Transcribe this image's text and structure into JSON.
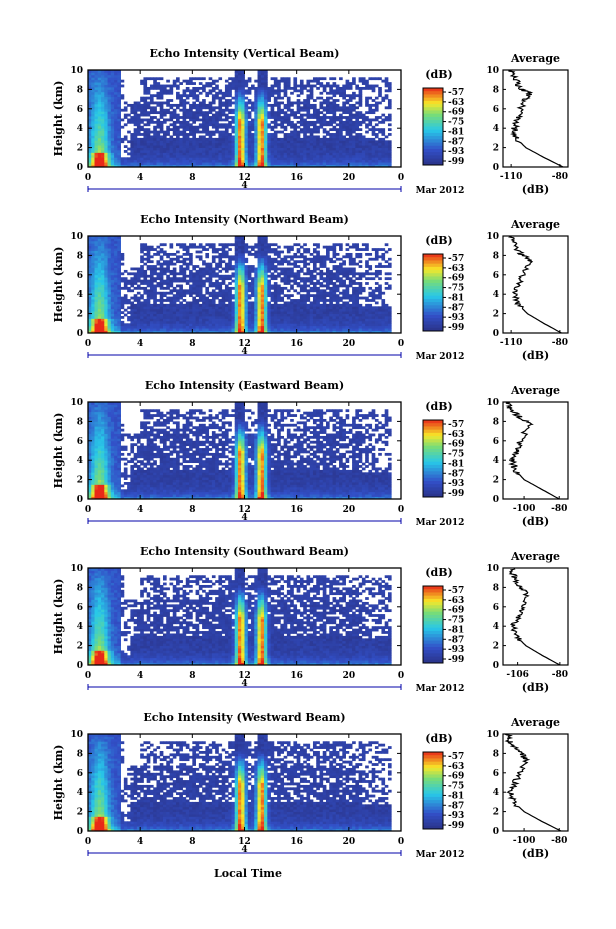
{
  "figure": {
    "date_label": "Mar 2012",
    "xaxis_title": "Local Time",
    "ylabel": "Height (km)",
    "colorbar_unit": "(dB)",
    "profile_title": "Average",
    "profile_xlabel": "(dB)",
    "day_marker": "4"
  },
  "colors": {
    "low": "#2a3388",
    "lowBlue": "#3a52c8",
    "cyan": "#28c8e8",
    "yellow": "#f8e828",
    "red": "#e82818"
  },
  "chart_data": [
    {
      "type": "heatmap",
      "title": "Echo Intensity (Vertical Beam)",
      "x_ticks": [
        "0",
        "4",
        "8",
        "12",
        "16",
        "20",
        "0"
      ],
      "x_range": [
        0,
        24
      ],
      "y_ticks": [
        "0",
        "2",
        "4",
        "6",
        "8",
        "10"
      ],
      "y_range": [
        0,
        10
      ],
      "colorbar_ticks": [
        "-57",
        "-63",
        "-69",
        "-75",
        "-81",
        "-87",
        "-93",
        "-99"
      ],
      "profile": {
        "x_ticks": [
          "-110",
          "-80"
        ],
        "x_range": [
          -115,
          -75
        ],
        "values": [
          [
            -78,
            0
          ],
          [
            -90,
            1
          ],
          [
            -101,
            2
          ],
          [
            -107,
            3
          ],
          [
            -108,
            4
          ],
          [
            -106,
            5
          ],
          [
            -104,
            6
          ],
          [
            -101,
            7
          ],
          [
            -98,
            7.6
          ],
          [
            -104,
            8
          ],
          [
            -107,
            9
          ],
          [
            -110,
            10
          ]
        ]
      }
    },
    {
      "type": "heatmap",
      "title": "Echo Intensity (Northward Beam)",
      "x_ticks": [
        "0",
        "4",
        "8",
        "12",
        "16",
        "20",
        "0"
      ],
      "x_range": [
        0,
        24
      ],
      "y_ticks": [
        "0",
        "2",
        "4",
        "6",
        "8",
        "10"
      ],
      "y_range": [
        0,
        10
      ],
      "colorbar_ticks": [
        "-57",
        "-63",
        "-69",
        "-75",
        "-81",
        "-87",
        "-93",
        "-99"
      ],
      "profile": {
        "x_ticks": [
          "-110",
          "-80"
        ],
        "x_range": [
          -115,
          -75
        ],
        "values": [
          [
            -79,
            0
          ],
          [
            -90,
            1
          ],
          [
            -100,
            2
          ],
          [
            -106,
            3
          ],
          [
            -108,
            4
          ],
          [
            -105,
            5
          ],
          [
            -103,
            6
          ],
          [
            -98,
            7.5
          ],
          [
            -104,
            8.2
          ],
          [
            -108,
            9
          ],
          [
            -110,
            10
          ]
        ]
      }
    },
    {
      "type": "heatmap",
      "title": "Echo Intensity (Eastward Beam)",
      "x_ticks": [
        "0",
        "4",
        "8",
        "12",
        "16",
        "20",
        "0"
      ],
      "x_range": [
        0,
        24
      ],
      "y_ticks": [
        "0",
        "2",
        "4",
        "6",
        "8",
        "10"
      ],
      "y_range": [
        0,
        10
      ],
      "colorbar_ticks": [
        "-57",
        "-63",
        "-69",
        "-75",
        "-81",
        "-87",
        "-93",
        "-99"
      ],
      "profile": {
        "x_ticks": [
          "-100",
          "-80"
        ],
        "x_range": [
          -112,
          -75
        ],
        "values": [
          [
            -80,
            0
          ],
          [
            -90,
            1
          ],
          [
            -100,
            2
          ],
          [
            -105,
            3
          ],
          [
            -107,
            4
          ],
          [
            -104,
            5
          ],
          [
            -102,
            6
          ],
          [
            -97,
            7.7
          ],
          [
            -103,
            8.5
          ],
          [
            -108,
            9.4
          ],
          [
            -110,
            10
          ]
        ]
      }
    },
    {
      "type": "heatmap",
      "title": "Echo Intensity (Southward Beam)",
      "x_ticks": [
        "0",
        "4",
        "8",
        "12",
        "16",
        "20",
        "0"
      ],
      "x_range": [
        0,
        24
      ],
      "y_ticks": [
        "0",
        "2",
        "4",
        "6",
        "8",
        "10"
      ],
      "y_range": [
        0,
        10
      ],
      "colorbar_ticks": [
        "-57",
        "-63",
        "-69",
        "-75",
        "-81",
        "-87",
        "-93",
        "-99"
      ],
      "profile": {
        "x_ticks": [
          "-106",
          "-80"
        ],
        "x_range": [
          -115,
          -75
        ],
        "values": [
          [
            -80,
            0
          ],
          [
            -91,
            1
          ],
          [
            -101,
            2
          ],
          [
            -107,
            3
          ],
          [
            -109,
            4
          ],
          [
            -105,
            5
          ],
          [
            -103,
            6
          ],
          [
            -100,
            7.4
          ],
          [
            -104,
            8
          ],
          [
            -108,
            9
          ],
          [
            -110,
            10
          ]
        ]
      }
    },
    {
      "type": "heatmap",
      "title": "Echo Intensity (Westward Beam)",
      "x_ticks": [
        "0",
        "4",
        "8",
        "12",
        "16",
        "20",
        "0"
      ],
      "x_range": [
        0,
        24
      ],
      "y_ticks": [
        "0",
        "2",
        "4",
        "6",
        "8",
        "10"
      ],
      "y_range": [
        0,
        10
      ],
      "colorbar_ticks": [
        "-57",
        "-63",
        "-69",
        "-75",
        "-81",
        "-87",
        "-93",
        "-99"
      ],
      "profile": {
        "x_ticks": [
          "-100",
          "-80"
        ],
        "x_range": [
          -112,
          -75
        ],
        "values": [
          [
            -79,
            0
          ],
          [
            -90,
            1
          ],
          [
            -100,
            2
          ],
          [
            -106,
            3
          ],
          [
            -108,
            4
          ],
          [
            -105,
            5
          ],
          [
            -102,
            6
          ],
          [
            -99,
            7.5
          ],
          [
            -104,
            8.3
          ],
          [
            -108,
            9.2
          ],
          [
            -110,
            10
          ]
        ]
      }
    }
  ]
}
